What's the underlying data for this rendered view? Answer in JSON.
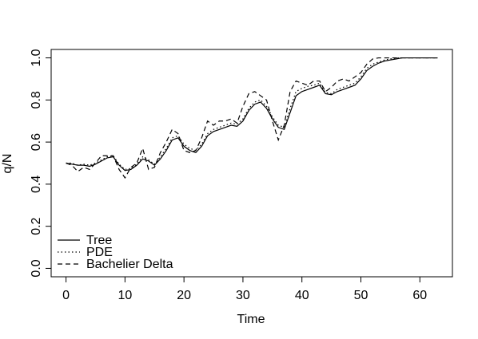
{
  "chart_data": {
    "type": "line",
    "xlabel": "Time",
    "ylabel": "q/N",
    "x": [
      0,
      1,
      2,
      3,
      4,
      5,
      6,
      7,
      8,
      9,
      10,
      11,
      12,
      13,
      14,
      15,
      16,
      17,
      18,
      19,
      20,
      21,
      22,
      23,
      24,
      25,
      26,
      27,
      28,
      29,
      30,
      31,
      32,
      33,
      34,
      35,
      36,
      37,
      38,
      39,
      40,
      41,
      42,
      43,
      44,
      45,
      46,
      47,
      48,
      49,
      50,
      51,
      52,
      53,
      54,
      55,
      56,
      57,
      58,
      59,
      60,
      61,
      62,
      63
    ],
    "series": [
      {
        "name": "Tree",
        "color": "#000000",
        "linestyle": "solid",
        "values": [
          0.5,
          0.495,
          0.49,
          0.49,
          0.485,
          0.495,
          0.51,
          0.525,
          0.53,
          0.49,
          0.465,
          0.47,
          0.49,
          0.52,
          0.51,
          0.49,
          0.52,
          0.56,
          0.61,
          0.62,
          0.58,
          0.56,
          0.55,
          0.58,
          0.63,
          0.65,
          0.66,
          0.67,
          0.68,
          0.675,
          0.7,
          0.75,
          0.78,
          0.79,
          0.76,
          0.71,
          0.67,
          0.66,
          0.74,
          0.82,
          0.84,
          0.85,
          0.86,
          0.87,
          0.83,
          0.825,
          0.84,
          0.85,
          0.86,
          0.87,
          0.9,
          0.94,
          0.96,
          0.975,
          0.985,
          0.99,
          0.995,
          1,
          1,
          1,
          1,
          1,
          1,
          1
        ]
      },
      {
        "name": "PDE",
        "color": "#000000",
        "linestyle": "dotted",
        "values": [
          0.5,
          0.5,
          0.49,
          0.495,
          0.49,
          0.5,
          0.515,
          0.53,
          0.535,
          0.495,
          0.47,
          0.475,
          0.495,
          0.53,
          0.515,
          0.495,
          0.53,
          0.57,
          0.62,
          0.63,
          0.59,
          0.57,
          0.56,
          0.59,
          0.64,
          0.66,
          0.67,
          0.68,
          0.69,
          0.685,
          0.71,
          0.76,
          0.79,
          0.8,
          0.77,
          0.72,
          0.68,
          0.67,
          0.76,
          0.84,
          0.855,
          0.865,
          0.87,
          0.88,
          0.835,
          0.83,
          0.85,
          0.86,
          0.87,
          0.88,
          0.91,
          0.95,
          0.97,
          0.98,
          0.99,
          0.995,
          1,
          1,
          1,
          1,
          1,
          1,
          1,
          1
        ]
      },
      {
        "name": "Bachelier Delta",
        "color": "#000000",
        "linestyle": "dashed",
        "values": [
          0.5,
          0.49,
          0.46,
          0.48,
          0.47,
          0.5,
          0.535,
          0.535,
          0.535,
          0.47,
          0.43,
          0.48,
          0.5,
          0.57,
          0.47,
          0.48,
          0.55,
          0.6,
          0.66,
          0.64,
          0.56,
          0.55,
          0.56,
          0.62,
          0.7,
          0.68,
          0.7,
          0.7,
          0.71,
          0.69,
          0.77,
          0.83,
          0.84,
          0.82,
          0.8,
          0.7,
          0.61,
          0.68,
          0.84,
          0.89,
          0.88,
          0.87,
          0.89,
          0.89,
          0.84,
          0.86,
          0.89,
          0.9,
          0.89,
          0.91,
          0.93,
          0.97,
          0.995,
          1,
          1,
          1,
          1,
          1,
          1,
          1,
          1,
          1,
          1,
          1
        ]
      }
    ],
    "xlim": [
      -2.52,
      65.52
    ],
    "xticks": [
      0,
      10,
      20,
      30,
      40,
      50,
      60
    ],
    "ylim": [
      -0.04,
      1.04
    ],
    "yticks": [
      {
        "value": 0,
        "label": "0.0"
      },
      0.2,
      0.4,
      0.6,
      0.8,
      {
        "value": 1,
        "label": "1.0"
      }
    ],
    "legend": "bottom-left"
  }
}
